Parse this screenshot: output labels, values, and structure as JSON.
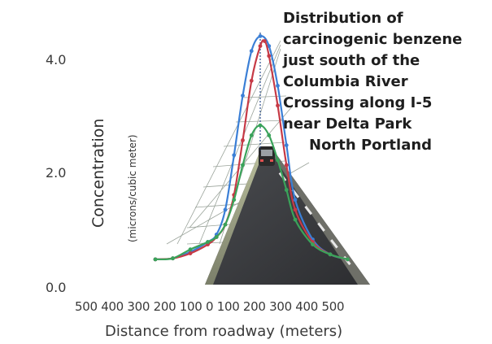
{
  "chart_data": {
    "type": "line",
    "title_lines": [
      "Distribution of",
      "carcinogenic benzene",
      "just south of the",
      "Columbia River",
      "Crossing along I-5",
      "near Delta Park",
      "North Portland"
    ],
    "ylabel": "Concentration",
    "ylabel_sub": "(microns/cubic meter)",
    "xlabel": "Distance from roadway (meters)",
    "x_tick_text": "500 400 300 200 100 0 100 200 300 400 500",
    "y_ticks": [
      "4.0",
      "2.0",
      "0.0"
    ],
    "ylim": [
      0,
      5
    ],
    "series": [
      {
        "color": "#3b7fd6",
        "x": [
          -600,
          -500,
          -400,
          -300,
          -250,
          -200,
          -150,
          -100,
          -50,
          0,
          50,
          100,
          150,
          200,
          300,
          400,
          500
        ],
        "y": [
          0.1,
          0.12,
          0.25,
          0.45,
          0.6,
          1.1,
          2.2,
          3.4,
          4.3,
          4.6,
          4.4,
          3.6,
          2.4,
          1.3,
          0.5,
          0.2,
          0.1
        ]
      },
      {
        "color": "#c63a46",
        "x": [
          -600,
          -500,
          -400,
          -300,
          -250,
          -200,
          -150,
          -100,
          -50,
          0,
          25,
          50,
          100,
          150,
          200,
          300,
          400,
          500
        ],
        "y": [
          0.1,
          0.12,
          0.22,
          0.4,
          0.55,
          0.8,
          1.4,
          2.5,
          3.7,
          4.4,
          4.5,
          4.2,
          3.2,
          2.0,
          1.1,
          0.45,
          0.2,
          0.1
        ]
      },
      {
        "color": "#3aa35a",
        "x": [
          -600,
          -500,
          -400,
          -300,
          -250,
          -200,
          -150,
          -100,
          -50,
          0,
          50,
          100,
          150,
          200,
          300,
          400,
          500
        ],
        "y": [
          0.1,
          0.12,
          0.3,
          0.45,
          0.55,
          0.8,
          1.3,
          2.0,
          2.6,
          2.8,
          2.6,
          2.1,
          1.5,
          0.9,
          0.4,
          0.2,
          0.1
        ]
      }
    ]
  }
}
